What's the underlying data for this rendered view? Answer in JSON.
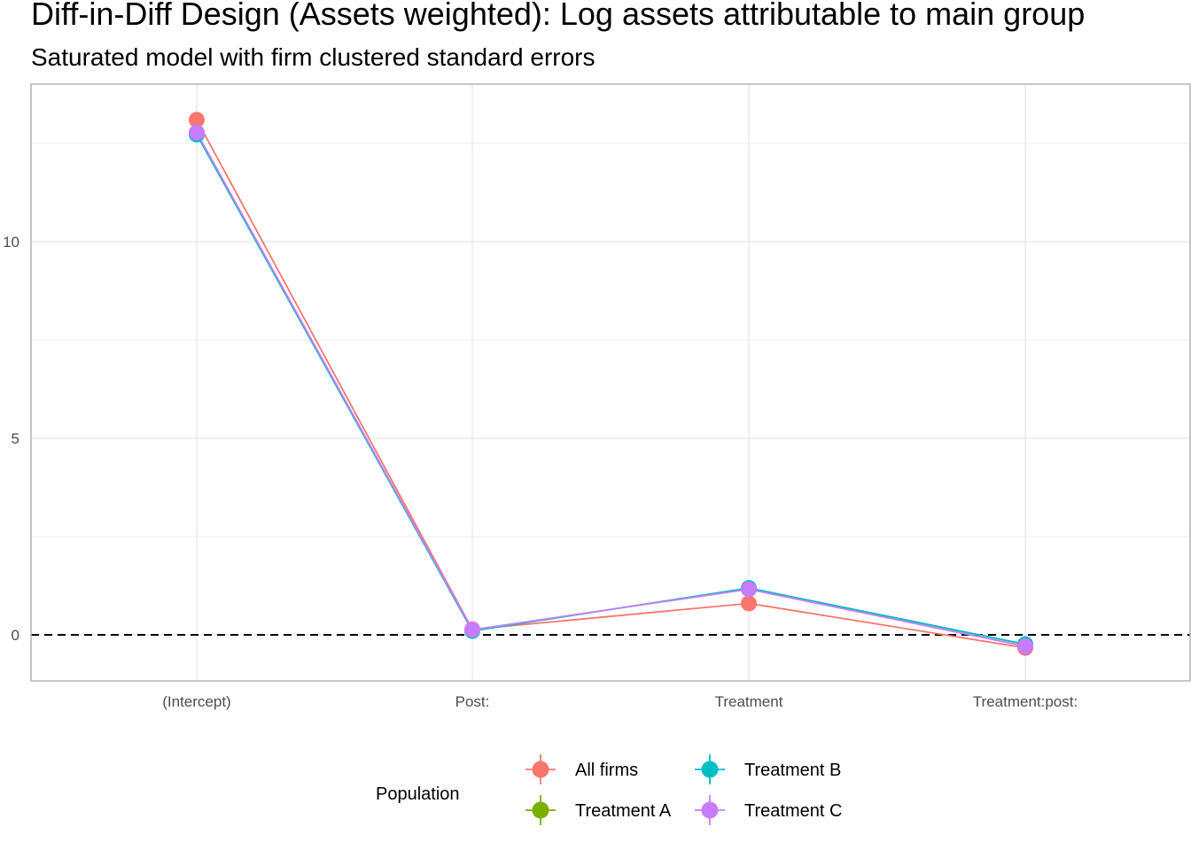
{
  "chart_data": {
    "type": "line",
    "title": "Diff-in-Diff Design (Assets weighted): Log assets attributable to main group",
    "subtitle": "Saturated model with firm clustered standard errors",
    "xlabel": "",
    "ylabel": "",
    "categories": [
      "(Intercept)",
      "Post:",
      "Treatment",
      "Treatment:post:"
    ],
    "ylim": [
      -1.15,
      13.9
    ],
    "y_ticks": [
      0,
      5,
      10
    ],
    "y_tick_labels": [
      "0",
      "5",
      "10"
    ],
    "reference_line": {
      "y": 0,
      "style": "dashed"
    },
    "grid": true,
    "legend": {
      "title": "Population",
      "position": "bottom"
    },
    "series": [
      {
        "name": "All firms",
        "color": "#F8766D",
        "values": [
          13.1,
          0.14,
          0.8,
          -0.33
        ]
      },
      {
        "name": "Treatment A",
        "color": "#7CAE00",
        "values": [
          12.73,
          0.1,
          1.19,
          -0.24
        ]
      },
      {
        "name": "Treatment B",
        "color": "#00BFC4",
        "values": [
          12.73,
          0.1,
          1.19,
          -0.24
        ]
      },
      {
        "name": "Treatment C",
        "color": "#C77CFF",
        "values": [
          12.78,
          0.13,
          1.16,
          -0.29
        ]
      }
    ]
  }
}
